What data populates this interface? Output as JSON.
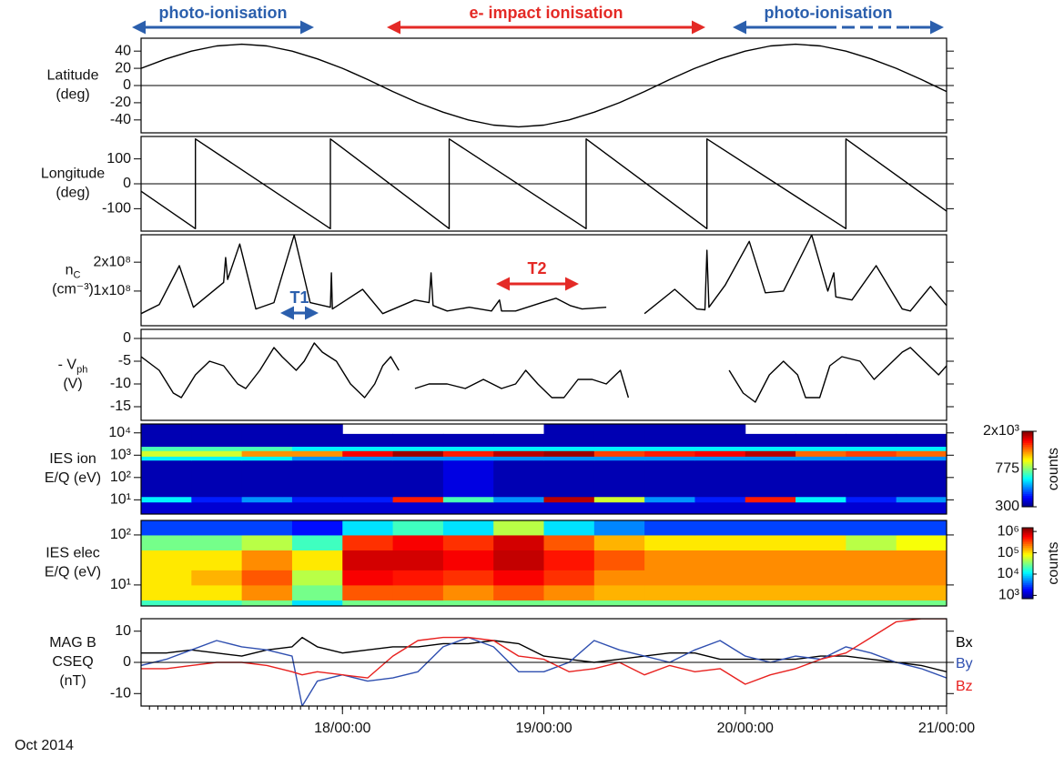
{
  "annotations": {
    "regions": [
      "photo-ionisation",
      "e- impact ionisation",
      "photo-ionisation"
    ],
    "intervals": [
      "T1",
      "T2"
    ]
  },
  "chart_data": [
    {
      "type": "line",
      "ylabel": [
        "Latitude",
        "(deg)"
      ],
      "xlim": [
        17,
        21
      ],
      "ylim": [
        -55,
        55
      ],
      "yticks": [
        40,
        20,
        0,
        -20,
        -40
      ],
      "zero_line": true,
      "color": "#000000",
      "x": [
        17,
        17.125,
        17.25,
        17.375,
        17.5,
        17.625,
        17.75,
        17.875,
        18,
        18.125,
        18.25,
        18.375,
        18.5,
        18.625,
        18.75,
        18.875,
        19,
        19.125,
        19.25,
        19.375,
        19.5,
        19.625,
        19.75,
        19.875,
        20,
        20.125,
        20.25,
        20.375,
        20.5,
        20.625,
        20.75,
        20.875,
        21
      ],
      "values": [
        20,
        31,
        40,
        46,
        48,
        46,
        40,
        31,
        20,
        7,
        -7,
        -20,
        -31,
        -40,
        -46,
        -48,
        -46,
        -40,
        -31,
        -20,
        -7,
        7,
        20,
        31,
        40,
        46,
        48,
        46,
        40,
        31,
        20,
        7,
        -7
      ]
    },
    {
      "type": "line",
      "ylabel": [
        "Longitude",
        "(deg)"
      ],
      "xlim": [
        17,
        21
      ],
      "ylim": [
        -190,
        190
      ],
      "yticks": [
        100,
        0,
        -100
      ],
      "zero_line": true,
      "color": "#000000",
      "x": [
        17,
        17.27,
        17.27,
        17.94,
        17.94,
        18.53,
        18.53,
        19.21,
        19.21,
        19.81,
        19.81,
        20.5,
        20.5,
        21
      ],
      "values": [
        -30,
        -180,
        180,
        -180,
        180,
        -180,
        180,
        -180,
        180,
        -180,
        180,
        -180,
        180,
        -110
      ]
    },
    {
      "type": "line",
      "ylabel": [
        {
          "text": "n",
          "sub": "C"
        },
        "(cm⁻³)"
      ],
      "xlim": [
        17,
        21
      ],
      "ylim": [
        -20000000,
        295000000
      ],
      "yticks": [
        {
          "value": 200000000,
          "label": "2x10⁸"
        },
        {
          "value": 100000000,
          "label": "1x10⁸"
        }
      ],
      "color": "#000000",
      "x": [
        17,
        17.09,
        17.19,
        17.26,
        17.41,
        17.42,
        17.43,
        17.49,
        17.57,
        17.66,
        17.76,
        17.84,
        17.94,
        17.945,
        17.95,
        18.1,
        18.2,
        18.36,
        18.43,
        18.44,
        18.45,
        18.52,
        18.63,
        18.74,
        18.78,
        18.79,
        18.86,
        18.99,
        19.06,
        19.13,
        19.19,
        19.31,
        19.4,
        19.5,
        19.65,
        19.76,
        19.8,
        19.81,
        19.82,
        19.9,
        20.02,
        20.1,
        20.19,
        20.33,
        20.41,
        20.44,
        20.45,
        20.53,
        20.65,
        20.78,
        20.82,
        20.92,
        21
      ],
      "values": [
        22000000,
        53000000,
        188000000,
        44000000,
        130000000,
        216000000,
        140000000,
        263000000,
        38000000,
        60000000,
        294000000,
        60000000,
        44000000,
        163000000,
        38000000,
        106000000,
        22000000,
        69000000,
        60000000,
        163000000,
        50000000,
        31000000,
        44000000,
        31000000,
        69000000,
        31000000,
        31000000,
        60000000,
        75000000,
        50000000,
        38000000,
        44000000,
        null,
        22000000,
        106000000,
        38000000,
        35000000,
        241000000,
        44000000,
        120000000,
        272000000,
        94000000,
        100000000,
        294000000,
        100000000,
        163000000,
        80000000,
        69000000,
        188000000,
        38000000,
        31000000,
        116000000,
        50000000
      ]
    },
    {
      "type": "line",
      "ylabel": [
        {
          "text": "- V",
          "sub": "ph"
        },
        "(V)"
      ],
      "xlim": [
        17,
        21
      ],
      "ylim": [
        -18,
        2
      ],
      "yticks": [
        0,
        -5,
        -10,
        -15
      ],
      "zero_line": true,
      "color": "#000000",
      "x": [
        17,
        17.09,
        17.16,
        17.2,
        17.27,
        17.34,
        17.41,
        17.48,
        17.52,
        17.59,
        17.66,
        17.7,
        17.77,
        17.81,
        17.86,
        17.9,
        17.97,
        18.04,
        18.11,
        18.16,
        18.2,
        18.24,
        18.28,
        18.32,
        18.36,
        18.43,
        18.52,
        18.61,
        18.7,
        18.79,
        18.86,
        18.91,
        18.97,
        19.04,
        19.1,
        19.17,
        19.24,
        19.31,
        19.38,
        19.42,
        19.6,
        19.92,
        19.99,
        20.05,
        20.12,
        20.19,
        20.26,
        20.3,
        20.37,
        20.42,
        20.48,
        20.57,
        20.64,
        20.71,
        20.78,
        20.82,
        20.89,
        20.96,
        21
      ],
      "values": [
        -4,
        -7,
        -12,
        -13,
        -8,
        -5,
        -6,
        -10,
        -11,
        -7,
        -2,
        -4,
        -7,
        -5,
        -1,
        -3,
        -5,
        -10,
        -13,
        -10,
        -6,
        -4,
        -7,
        null,
        -11,
        -10,
        -10,
        -11,
        -9,
        -11,
        -10,
        -7,
        -10,
        -13,
        -13,
        -9,
        -9,
        -10,
        -7,
        -13,
        null,
        -7,
        -12,
        -14,
        -8,
        -5,
        -8,
        -13,
        -13,
        -6,
        -4,
        -5,
        -9,
        -6,
        -3,
        -2,
        -5,
        -8,
        -6
      ]
    },
    {
      "type": "heatmap",
      "ylabel": [
        "IES ion",
        "E/Q (eV)"
      ],
      "xlim": [
        17,
        21
      ],
      "ylim": [
        2.3,
        25000
      ],
      "ylog": true,
      "yticks": [
        {
          "value": 10000,
          "label": "10⁴"
        },
        {
          "value": 1000,
          "label": "10³"
        },
        {
          "value": 100,
          "label": "10²"
        },
        {
          "value": 10,
          "label": "10¹"
        }
      ],
      "colorbar": {
        "label": "counts",
        "lim": [
          300,
          2000
        ],
        "log": true,
        "ticks": [
          {
            "value": 2000,
            "label": "2x10³"
          },
          775,
          300
        ]
      },
      "x": [
        17,
        17.25,
        17.5,
        17.75,
        18,
        18.25,
        18.5,
        18.75,
        19,
        19.25,
        19.5,
        19.75,
        20,
        20.25,
        20.5,
        20.75,
        21
      ],
      "y": [
        2.3,
        8,
        14,
        600,
        900,
        1600,
        2500,
        9000,
        25000
      ],
      "z": [
        [
          350,
          350,
          350,
          350,
          350,
          350,
          350,
          350,
          350,
          350,
          350,
          350,
          350,
          350,
          350,
          350
        ],
        [
          600,
          400,
          500,
          400,
          400,
          1500,
          700,
          500,
          1800,
          900,
          500,
          400,
          1500,
          600,
          400,
          500
        ],
        [
          330,
          330,
          330,
          330,
          330,
          330,
          360,
          330,
          330,
          330,
          330,
          330,
          330,
          330,
          330,
          330
        ],
        [
          600,
          600,
          600,
          500,
          500,
          500,
          500,
          500,
          500,
          500,
          500,
          500,
          500,
          500,
          500,
          500
        ],
        [
          900,
          900,
          1200,
          1200,
          1600,
          1900,
          1500,
          1800,
          1900,
          1400,
          1500,
          1600,
          1800,
          1300,
          1400,
          1300
        ],
        [
          700,
          700,
          700,
          600,
          600,
          600,
          600,
          600,
          600,
          600,
          600,
          600,
          600,
          600,
          600,
          600
        ],
        [
          330,
          330,
          330,
          330,
          330,
          330,
          330,
          330,
          330,
          330,
          330,
          330,
          330,
          330,
          330,
          330
        ],
        [
          330,
          330,
          330,
          330,
          null,
          null,
          null,
          null,
          330,
          330,
          330,
          330,
          null,
          null,
          null,
          null
        ]
      ]
    },
    {
      "type": "heatmap",
      "ylabel": [
        "IES elec",
        "E/Q (eV)"
      ],
      "xlim": [
        17,
        21
      ],
      "ylim": [
        3.8,
        195
      ],
      "ylog": true,
      "yticks": [
        {
          "value": 100,
          "label": "10²"
        },
        {
          "value": 10,
          "label": "10¹"
        }
      ],
      "colorbar": {
        "label": "counts",
        "lim": [
          700,
          1500000
        ],
        "log": true,
        "ticks": [
          {
            "value": 1000000,
            "label": "10⁶"
          },
          {
            "value": 100000,
            "label": "10⁵"
          },
          {
            "value": 10000,
            "label": "10⁴"
          },
          {
            "value": 1000,
            "label": "10³"
          }
        ]
      },
      "x": [
        17,
        17.25,
        17.5,
        17.75,
        18,
        18.25,
        18.5,
        18.75,
        19,
        19.25,
        19.5,
        19.75,
        20,
        20.25,
        20.5,
        20.75,
        21
      ],
      "y": [
        3.8,
        5,
        10,
        20,
        50,
        100,
        195
      ],
      "z": [
        [
          20000,
          20000,
          30000,
          10000,
          30000,
          30000,
          30000,
          30000,
          30000,
          30000,
          30000,
          30000,
          30000,
          30000,
          30000,
          30000
        ],
        [
          100000,
          100000,
          200000,
          30000,
          300000,
          300000,
          200000,
          300000,
          200000,
          150000,
          150000,
          150000,
          150000,
          150000,
          150000,
          150000
        ],
        [
          100000,
          150000,
          300000,
          50000,
          600000,
          500000,
          400000,
          600000,
          400000,
          200000,
          200000,
          200000,
          200000,
          200000,
          200000,
          200000
        ],
        [
          100000,
          100000,
          200000,
          100000,
          800000,
          800000,
          600000,
          900000,
          500000,
          300000,
          200000,
          200000,
          200000,
          200000,
          200000,
          200000
        ],
        [
          30000,
          30000,
          50000,
          20000,
          400000,
          600000,
          400000,
          800000,
          300000,
          150000,
          100000,
          100000,
          100000,
          100000,
          50000,
          80000
        ],
        [
          3000,
          3000,
          3000,
          2000,
          10000,
          20000,
          10000,
          50000,
          10000,
          5000,
          3000,
          3000,
          3000,
          3000,
          3000,
          3000
        ]
      ]
    },
    {
      "type": "line",
      "ylabel": [
        "MAG B",
        "CSEQ",
        "(nT)"
      ],
      "xlim": [
        17,
        21
      ],
      "ylim": [
        -14,
        14
      ],
      "yticks": [
        10,
        0,
        -10
      ],
      "zero_line": true,
      "xticks": [
        {
          "value": 18,
          "label": "18/00:00"
        },
        {
          "value": 19,
          "label": "19/00:00"
        },
        {
          "value": 20,
          "label": "20/00:00"
        },
        {
          "value": 21,
          "label": "21/00:00"
        }
      ],
      "xlabel": "Oct 2014",
      "x": [
        17,
        17.125,
        17.25,
        17.375,
        17.5,
        17.625,
        17.75,
        17.8,
        17.875,
        18,
        18.125,
        18.25,
        18.375,
        18.5,
        18.625,
        18.75,
        18.875,
        19,
        19.125,
        19.25,
        19.375,
        19.5,
        19.625,
        19.75,
        19.875,
        20,
        20.125,
        20.25,
        20.375,
        20.5,
        20.625,
        20.75,
        20.875,
        21
      ],
      "series": [
        {
          "name": "Bx",
          "color": "#000000",
          "values": [
            3,
            3,
            4,
            3,
            2,
            4,
            5,
            8,
            5,
            3,
            4,
            5,
            5,
            6,
            6,
            7,
            6,
            2,
            1,
            0,
            1,
            2,
            3,
            3,
            1,
            1,
            1,
            1,
            2,
            2,
            1,
            0,
            -1,
            -3
          ]
        },
        {
          "name": "By",
          "color": "#2f4fb0",
          "values": [
            -1,
            1,
            4,
            7,
            5,
            4,
            2,
            -14,
            -6,
            -4,
            -6,
            -5,
            -3,
            5,
            8,
            5,
            -3,
            -3,
            0,
            7,
            4,
            2,
            0,
            4,
            7,
            2,
            0,
            2,
            1,
            5,
            3,
            0,
            -2,
            -5
          ]
        },
        {
          "name": "Bz",
          "color": "#e8211f",
          "values": [
            -2,
            -2,
            -1,
            0,
            0,
            -1,
            -3,
            -4,
            -3,
            -4,
            -5,
            2,
            7,
            8,
            8,
            7,
            2,
            1,
            -3,
            -2,
            0,
            -4,
            -1,
            -3,
            -2,
            -7,
            -4,
            -2,
            1,
            3,
            8,
            13,
            14,
            14
          ]
        }
      ]
    }
  ]
}
